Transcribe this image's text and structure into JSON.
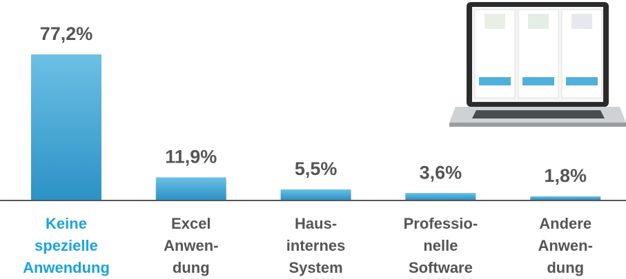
{
  "chart_data": {
    "type": "bar",
    "categories": [
      [
        "Keine",
        "spezielle",
        "Anwendung"
      ],
      [
        "Excel",
        "Anwen-",
        "dung"
      ],
      [
        "Haus-",
        "internes",
        "System"
      ],
      [
        "Professio-",
        "nelle",
        "Software"
      ],
      [
        "Andere",
        "Anwen-",
        "dung"
      ]
    ],
    "values": [
      77.2,
      11.9,
      5.5,
      3.6,
      1.8
    ],
    "value_labels": [
      "77,2%",
      "11,9%",
      "5,5%",
      "3,6%",
      "1,8%"
    ],
    "color": "#3aa3d4"
  }
}
